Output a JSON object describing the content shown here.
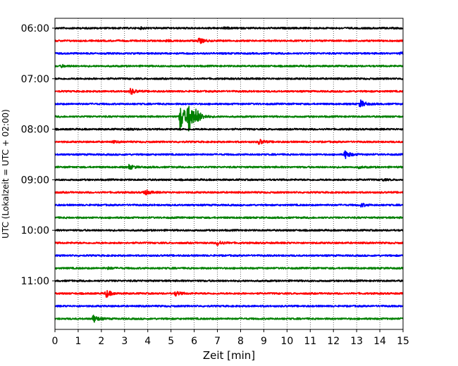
{
  "chart_data": {
    "type": "line",
    "title": "",
    "xlabel": "Zeit  [min]",
    "ylabel": "UTC (Lokalzeit = UTC + 02:00)",
    "xlim": [
      0,
      15
    ],
    "x_ticks": [
      "0",
      "1",
      "2",
      "3",
      "4",
      "5",
      "6",
      "7",
      "8",
      "9",
      "10",
      "11",
      "12",
      "13",
      "14",
      "15"
    ],
    "grid": "vertical-dotted",
    "legend": "none",
    "line_interval_minutes": 15,
    "row_colors": [
      "#000000",
      "#ff0000",
      "#0000ff",
      "#008000"
    ],
    "y_ticks": [
      {
        "label": "06:00",
        "row": 0
      },
      {
        "label": "07:00",
        "row": 4
      },
      {
        "label": "08:00",
        "row": 8
      },
      {
        "label": "09:00",
        "row": 12
      },
      {
        "label": "10:00",
        "row": 16
      },
      {
        "label": "11:00",
        "row": 20
      }
    ],
    "rows": [
      {
        "time": "06:00",
        "color": "#000000",
        "events": [
          {
            "t": 3.7,
            "amp": 0.1
          },
          {
            "t": 7.3,
            "amp": 0.1
          }
        ]
      },
      {
        "time": "06:15",
        "color": "#ff0000",
        "events": [
          {
            "t": 6.2,
            "amp": 0.45
          },
          {
            "t": 4.8,
            "amp": 0.12
          }
        ]
      },
      {
        "time": "06:30",
        "color": "#0000ff",
        "events": [
          {
            "t": 14.9,
            "amp": 0.18
          }
        ]
      },
      {
        "time": "06:45",
        "color": "#008000",
        "events": [
          {
            "t": 0.3,
            "amp": 0.15
          }
        ]
      },
      {
        "time": "07:00",
        "color": "#000000",
        "events": []
      },
      {
        "time": "07:15",
        "color": "#ff0000",
        "events": [
          {
            "t": 3.25,
            "amp": 0.5
          }
        ]
      },
      {
        "time": "07:30",
        "color": "#0000ff",
        "events": [
          {
            "t": 13.15,
            "amp": 0.6
          }
        ]
      },
      {
        "time": "07:45",
        "color": "#008000",
        "events": [
          {
            "t": 5.4,
            "amp": 2.5
          },
          {
            "t": 5.75,
            "amp": 3.0
          },
          {
            "t": 6.1,
            "amp": 0.8
          }
        ]
      },
      {
        "time": "08:00",
        "color": "#000000",
        "events": [
          {
            "t": 3.2,
            "amp": 0.12
          }
        ]
      },
      {
        "time": "08:15",
        "color": "#ff0000",
        "events": [
          {
            "t": 8.8,
            "amp": 0.4
          },
          {
            "t": 2.5,
            "amp": 0.12
          }
        ]
      },
      {
        "time": "08:30",
        "color": "#0000ff",
        "events": [
          {
            "t": 12.5,
            "amp": 0.65
          }
        ]
      },
      {
        "time": "08:45",
        "color": "#008000",
        "events": [
          {
            "t": 3.2,
            "amp": 0.35
          },
          {
            "t": 13.1,
            "amp": 0.12
          }
        ]
      },
      {
        "time": "09:00",
        "color": "#000000",
        "events": [
          {
            "t": 14.1,
            "amp": 0.12
          }
        ]
      },
      {
        "time": "09:15",
        "color": "#ff0000",
        "events": [
          {
            "t": 3.85,
            "amp": 0.45
          }
        ]
      },
      {
        "time": "09:30",
        "color": "#0000ff",
        "events": [
          {
            "t": 13.2,
            "amp": 0.25
          }
        ]
      },
      {
        "time": "09:45",
        "color": "#008000",
        "events": []
      },
      {
        "time": "10:00",
        "color": "#000000",
        "events": []
      },
      {
        "time": "10:15",
        "color": "#ff0000",
        "events": [
          {
            "t": 7.0,
            "amp": 0.4
          }
        ]
      },
      {
        "time": "10:30",
        "color": "#0000ff",
        "events": []
      },
      {
        "time": "10:45",
        "color": "#008000",
        "events": [
          {
            "t": 2.3,
            "amp": 0.15
          }
        ]
      },
      {
        "time": "11:00",
        "color": "#000000",
        "events": []
      },
      {
        "time": "11:15",
        "color": "#ff0000",
        "events": [
          {
            "t": 2.2,
            "amp": 0.6
          },
          {
            "t": 5.2,
            "amp": 0.35
          }
        ]
      },
      {
        "time": "11:30",
        "color": "#0000ff",
        "events": []
      },
      {
        "time": "11:45",
        "color": "#008000",
        "events": [
          {
            "t": 1.65,
            "amp": 0.6
          }
        ]
      }
    ]
  }
}
